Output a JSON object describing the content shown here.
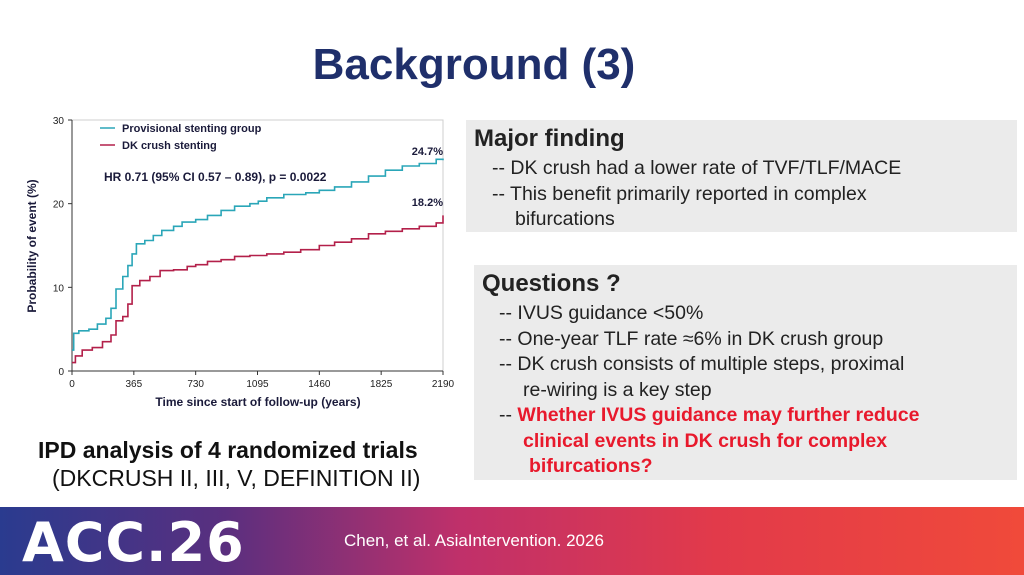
{
  "slide": {
    "title": "Background (3)"
  },
  "chart_data": {
    "type": "line",
    "title": "",
    "xlabel": "Time since start of follow-up (years)",
    "ylabel": "Probability of event (%)",
    "xlim": [
      0,
      2190
    ],
    "ylim": [
      0,
      30
    ],
    "x_ticks": [
      0,
      365,
      730,
      1095,
      1460,
      1825,
      2190
    ],
    "y_ticks": [
      0,
      10,
      20,
      30
    ],
    "legend_position": "top-left",
    "series": [
      {
        "name": "Provisional stenting group",
        "color": "#2aa6b8",
        "end_label": "24.7%",
        "points": [
          [
            0,
            2.5
          ],
          [
            10,
            4.5
          ],
          [
            40,
            4.8
          ],
          [
            100,
            5.0
          ],
          [
            150,
            5.6
          ],
          [
            200,
            6.3
          ],
          [
            230,
            7.5
          ],
          [
            260,
            9.8
          ],
          [
            300,
            11.3
          ],
          [
            330,
            12.6
          ],
          [
            355,
            14.0
          ],
          [
            380,
            15.2
          ],
          [
            430,
            15.6
          ],
          [
            480,
            16.2
          ],
          [
            530,
            16.8
          ],
          [
            600,
            17.3
          ],
          [
            650,
            17.8
          ],
          [
            730,
            18.1
          ],
          [
            800,
            18.6
          ],
          [
            880,
            19.2
          ],
          [
            960,
            19.7
          ],
          [
            1050,
            20.0
          ],
          [
            1100,
            20.3
          ],
          [
            1150,
            20.7
          ],
          [
            1250,
            21.1
          ],
          [
            1380,
            21.3
          ],
          [
            1460,
            21.6
          ],
          [
            1550,
            22.0
          ],
          [
            1650,
            22.6
          ],
          [
            1750,
            23.3
          ],
          [
            1850,
            24.0
          ],
          [
            1950,
            24.5
          ],
          [
            2050,
            24.8
          ],
          [
            2150,
            25.3
          ],
          [
            2190,
            25.2
          ]
        ]
      },
      {
        "name": "DK crush stenting",
        "color": "#b3204a",
        "end_label": "18.2%",
        "points": [
          [
            0,
            1.0
          ],
          [
            20,
            1.8
          ],
          [
            60,
            2.5
          ],
          [
            120,
            2.8
          ],
          [
            180,
            3.5
          ],
          [
            230,
            4.3
          ],
          [
            260,
            6.0
          ],
          [
            300,
            6.5
          ],
          [
            330,
            8.0
          ],
          [
            355,
            10.2
          ],
          [
            400,
            10.8
          ],
          [
            460,
            11.3
          ],
          [
            520,
            12.0
          ],
          [
            600,
            12.1
          ],
          [
            680,
            12.5
          ],
          [
            730,
            12.7
          ],
          [
            800,
            13.1
          ],
          [
            880,
            13.3
          ],
          [
            960,
            13.7
          ],
          [
            1050,
            13.8
          ],
          [
            1150,
            14.0
          ],
          [
            1250,
            14.2
          ],
          [
            1350,
            14.5
          ],
          [
            1460,
            15.0
          ],
          [
            1550,
            15.4
          ],
          [
            1650,
            15.8
          ],
          [
            1750,
            16.4
          ],
          [
            1850,
            16.7
          ],
          [
            1950,
            17.0
          ],
          [
            2050,
            17.3
          ],
          [
            2110,
            17.3
          ],
          [
            2150,
            17.7
          ],
          [
            2190,
            18.6
          ]
        ]
      }
    ],
    "annotation": "HR 0.71 (95% CI 0.57 – 0.89), p = 0.0022"
  },
  "box_major": {
    "heading": "Major finding",
    "lines": [
      "-- DK crush had a lower rate of TVF/TLF/MACE",
      "-- This benefit primarily reported in complex",
      "bifurcations"
    ]
  },
  "box_questions": {
    "heading": "Questions ?",
    "lines": [
      "-- IVUS guidance <50%",
      "-- One-year TLF rate ≈6% in DK crush group",
      "-- DK crush consists of multiple steps, proximal",
      "re-wiring is a key step",
      "--",
      "Whether IVUS guidance may further reduce",
      "clinical events in DK crush for complex",
      "bifurcations?"
    ],
    "highlight_color": "#e8192c"
  },
  "ipd": {
    "line1": "IPD analysis of 4 randomized trials",
    "line2": "(DKCRUSH II, III, V, DEFINITION II)"
  },
  "footer": {
    "logo_text": "ACC.26",
    "citation": "Chen, et al. AsiaIntervention. 2026"
  }
}
